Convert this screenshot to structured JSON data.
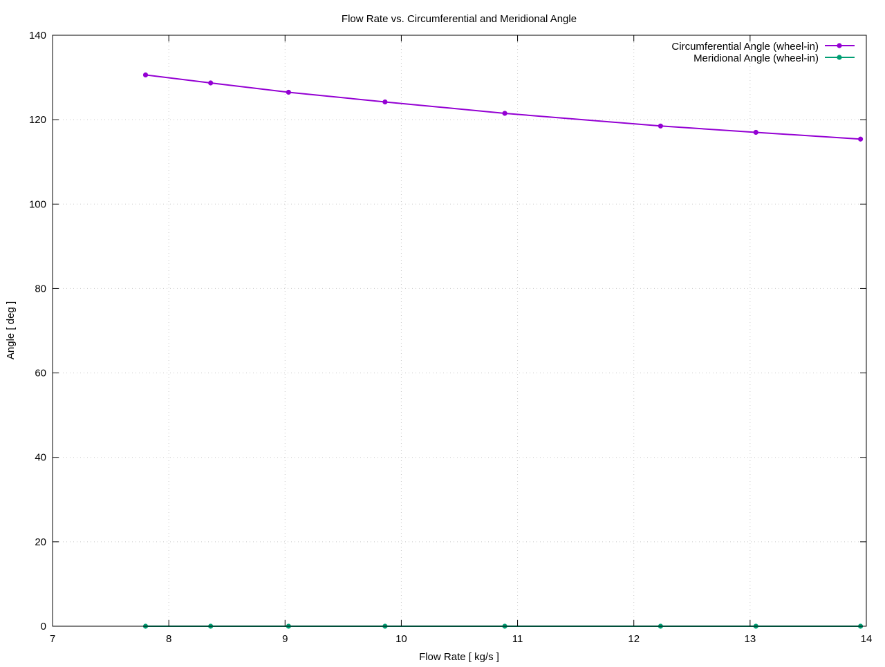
{
  "chart_data": {
    "type": "line",
    "title": "Flow Rate vs. Circumferential and Meridional Angle",
    "xlabel": "Flow Rate [ kg/s ]",
    "ylabel": "Angle [ deg ]",
    "xlim": [
      7,
      14
    ],
    "ylim": [
      0,
      140
    ],
    "xticks": [
      7,
      8,
      9,
      10,
      11,
      12,
      13,
      14
    ],
    "yticks": [
      0,
      20,
      40,
      60,
      80,
      100,
      120,
      140
    ],
    "grid": true,
    "legend_position": "top-right",
    "series": [
      {
        "name": "Circumferential Angle (wheel-in)",
        "color": "#9400d3",
        "marker": "circle",
        "x": [
          7.8,
          8.36,
          9.03,
          9.86,
          10.89,
          12.23,
          13.05,
          13.95
        ],
        "y": [
          130.6,
          128.7,
          126.5,
          124.2,
          121.5,
          118.5,
          117.0,
          115.4
        ]
      },
      {
        "name": "Meridional Angle (wheel-in)",
        "color": "#009e73",
        "marker": "circle",
        "x": [
          7.8,
          8.36,
          9.03,
          9.86,
          10.89,
          12.23,
          13.05,
          13.95
        ],
        "y": [
          0,
          0,
          0,
          0,
          0,
          0,
          0,
          0
        ]
      }
    ]
  }
}
